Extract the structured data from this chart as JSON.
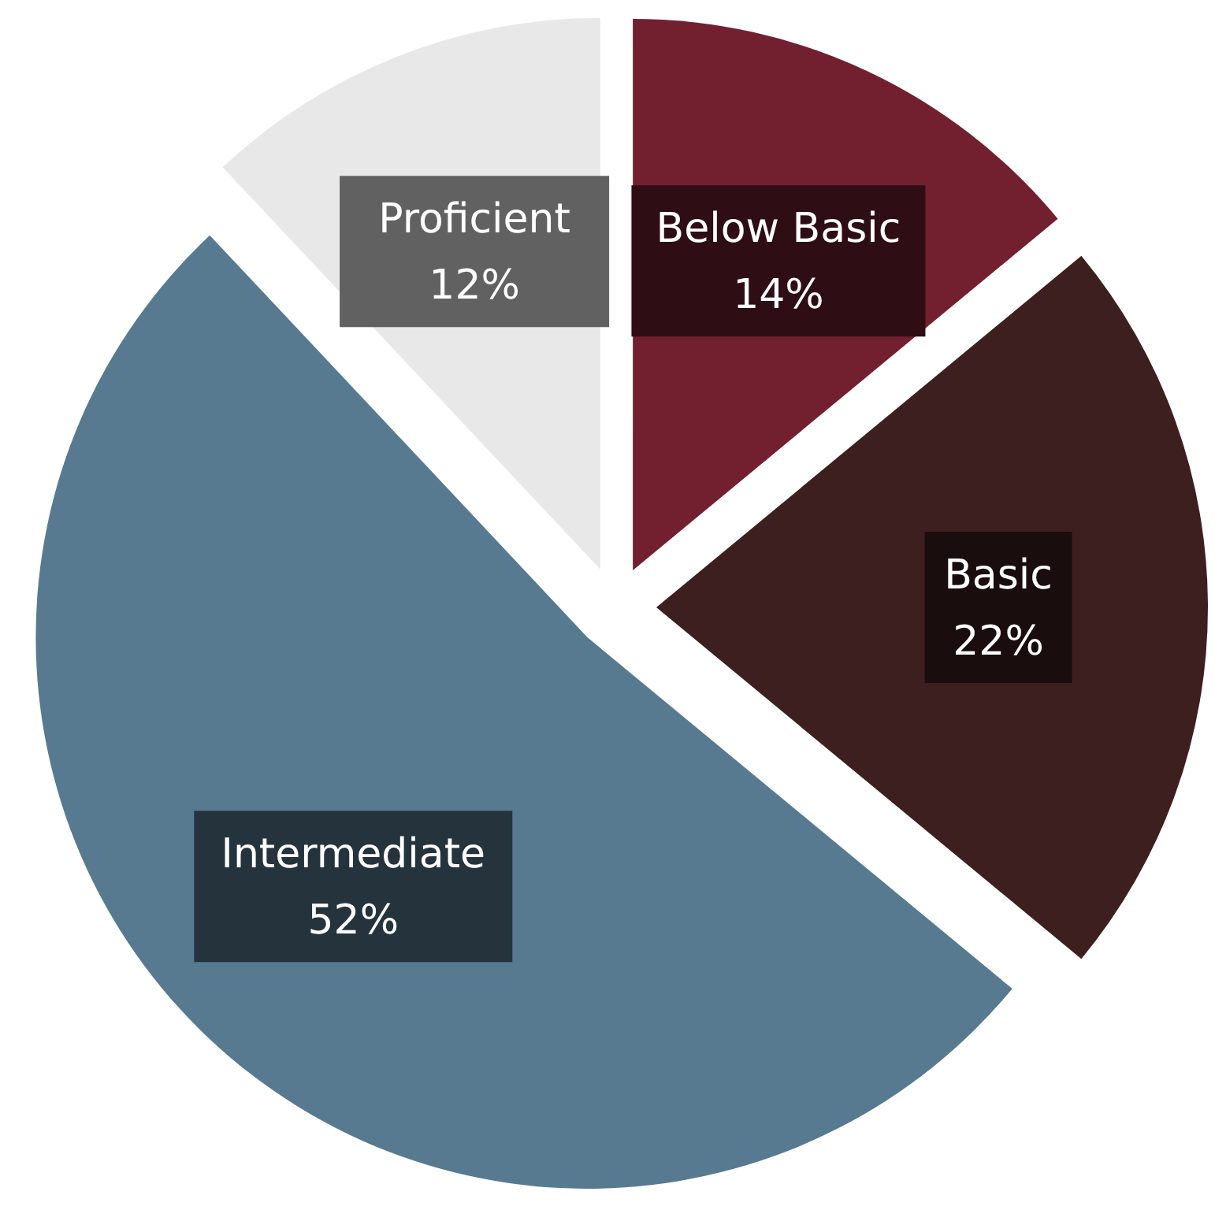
{
  "chart_data": {
    "type": "pie",
    "categories": [
      "Below Basic",
      "Basic",
      "Intermediate",
      "Proficient"
    ],
    "values": [
      14,
      22,
      52,
      12
    ],
    "colors": [
      "#722030",
      "#3e1f20",
      "#577a91",
      "#e8e8e8"
    ],
    "value_labels": [
      "14%",
      "22%",
      "52%",
      "12%"
    ]
  }
}
